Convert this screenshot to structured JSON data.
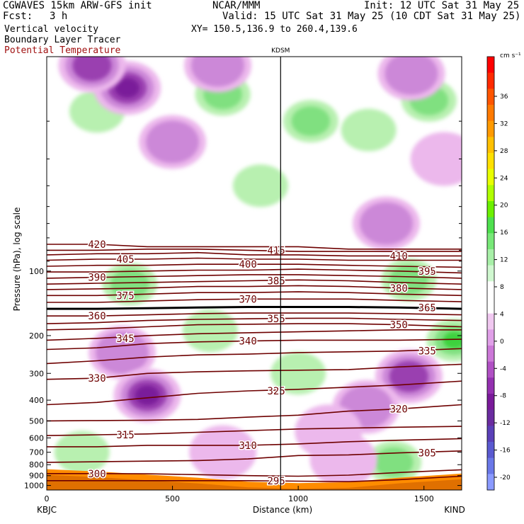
{
  "header": {
    "model": "CGWAVES 15km ARW-GFS init",
    "org": "NCAR/MMM",
    "init": "Init: 12 UTC Sat 31 May 25",
    "fcst_label": "Fcst:",
    "fcst_value": "3 h",
    "valid": "Valid: 15 UTC Sat 31 May 25 (10 CDT Sat 31 May 25)",
    "field1": "Vertical velocity",
    "field2": "Boundary Layer Tracer",
    "field3": "Potential Temperature",
    "xy": "XY= 150.5,136.9 to 260.4,139.6"
  },
  "colors": {
    "theta_contour": "#6e0000",
    "pbl_tracer": "#ff8c00",
    "pos_light": "#b8f0b0",
    "pos_mid": "#80e080",
    "pos_strong": "#3cd23c",
    "neg_light": "#ecb8ec",
    "neg_mid": "#cc88d8",
    "neg_strong": "#9a3fb0",
    "neg_vstrong": "#7a1a9a"
  },
  "chart_data": {
    "type": "heatmap",
    "xlabel": "Distance (km)",
    "ylabel": "Pressure (hPa), log scale",
    "y_log_scale": true,
    "xlim": [
      0,
      1650
    ],
    "ylim": [
      1050,
      10
    ],
    "x_ticks": [
      0,
      500,
      1000,
      1500
    ],
    "y_ticks": [
      100,
      200,
      300,
      400,
      500,
      600,
      700,
      800,
      900,
      1000
    ],
    "stations": [
      {
        "name": "KBJC",
        "x": 0
      },
      {
        "name": "KDSM",
        "x": 930
      },
      {
        "name": "KIND",
        "x": 1650
      }
    ],
    "colorbar": {
      "units": "cm s⁻¹",
      "ticks": [
        36,
        32,
        28,
        24,
        20,
        16,
        12,
        8,
        4,
        0,
        -4,
        -8,
        -12,
        -16,
        -20
      ],
      "colors": [
        "#ff0000",
        "#ff2a00",
        "#ff5500",
        "#ff7a00",
        "#ff9a00",
        "#ffc000",
        "#ffe000",
        "#e8ff00",
        "#b0ff00",
        "#6cf000",
        "#4ee04e",
        "#78e878",
        "#a8f0a8",
        "#d0f8d0",
        "#ffffff",
        "#ffffff",
        "#f0c8f0",
        "#e0a0e8",
        "#cc78d8",
        "#b050c4",
        "#9430b0",
        "#7a1a9a",
        "#6a2ca0",
        "#5a40b8",
        "#5a5ad0",
        "#6a78e8",
        "#8a9aff"
      ]
    },
    "theta_contours": [
      {
        "theta": 420,
        "p": [
          75,
          75,
          77,
          77,
          77,
          77,
          79,
          79,
          79
        ]
      },
      {
        "theta": 415,
        "p": [
          80,
          80,
          79,
          79,
          80,
          81,
          81,
          81,
          81
        ]
      },
      {
        "theta": 410,
        "p": [
          84,
          83,
          83,
          82,
          84,
          84,
          85,
          85,
          85
        ]
      },
      {
        "theta": 405,
        "p": [
          89,
          88,
          88,
          87,
          88,
          88,
          89,
          89,
          89
        ]
      },
      {
        "theta": 400,
        "p": [
          95,
          94,
          94,
          93,
          93,
          93,
          94,
          95,
          96
        ]
      },
      {
        "theta": 395,
        "p": [
          101,
          101,
          100,
          99,
          99,
          98,
          99,
          100,
          102
        ]
      },
      {
        "theta": 390,
        "p": [
          108,
          107,
          106,
          105,
          104,
          104,
          105,
          106,
          108
        ]
      },
      {
        "theta": 385,
        "p": [
          115,
          114,
          113,
          112,
          111,
          110,
          111,
          113,
          115
        ]
      },
      {
        "theta": 380,
        "p": [
          122,
          121,
          120,
          118,
          118,
          117,
          118,
          120,
          122
        ]
      },
      {
        "theta": 375,
        "p": [
          130,
          130,
          128,
          126,
          126,
          125,
          126,
          128,
          130
        ]
      },
      {
        "theta": 370,
        "p": [
          140,
          140,
          138,
          136,
          135,
          135,
          135,
          137,
          139
        ]
      },
      {
        "theta": 365,
        "p": [
          150,
          150,
          149,
          148,
          147,
          147,
          147,
          148,
          150
        ]
      },
      {
        "theta": 360,
        "p": [
          162,
          162,
          160,
          158,
          157,
          157,
          157,
          158,
          160
        ]
      },
      {
        "theta": 355,
        "p": [
          176,
          174,
          170,
          168,
          167,
          166,
          166,
          168,
          170
        ]
      },
      {
        "theta": 350,
        "p": [
          188,
          186,
          182,
          178,
          177,
          176,
          176,
          178,
          182
        ]
      },
      {
        "theta": 345,
        "p": [
          210,
          206,
          200,
          196,
          194,
          192,
          190,
          188,
          188
        ]
      },
      {
        "theta": 340,
        "p": [
          232,
          228,
          218,
          214,
          212,
          210,
          210,
          210,
          208
        ]
      },
      {
        "theta": 335,
        "p": [
          270,
          262,
          252,
          246,
          244,
          240,
          238,
          236,
          230
        ]
      },
      {
        "theta": 330,
        "p": [
          320,
          316,
          300,
          295,
          292,
          290,
          288,
          280,
          272
        ]
      },
      {
        "theta": 325,
        "p": [
          420,
          410,
          390,
          372,
          362,
          356,
          348,
          340,
          326
        ]
      },
      {
        "theta": 320,
        "p": [
          500,
          498,
          496,
          492,
          480,
          470,
          450,
          440,
          420
        ]
      },
      {
        "theta": 315,
        "p": [
          585,
          580,
          575,
          565,
          555,
          545,
          540,
          535,
          530
        ]
      },
      {
        "theta": 310,
        "p": [
          660,
          660,
          650,
          650,
          650,
          640,
          625,
          615,
          605
        ]
      },
      {
        "theta": 305,
        "p": [
          780,
          775,
          770,
          765,
          752,
          725,
          720,
          705,
          690
        ]
      },
      {
        "theta": 300,
        "p": [
          880,
          880,
          882,
          890,
          900,
          905,
          895,
          870,
          845
        ]
      },
      {
        "theta": 295,
        "p": [
          950,
          950,
          950,
          950,
          950,
          955,
          960,
          940,
          905
        ]
      }
    ],
    "contour_x": [
      0,
      200,
      400,
      600,
      800,
      1000,
      1200,
      1400,
      1650
    ],
    "tracer_top_p": [
      840,
      860,
      890,
      920,
      960,
      975,
      965,
      920,
      880
    ],
    "updrafts": [
      {
        "x": 200,
        "p": 18,
        "level": 1
      },
      {
        "x": 700,
        "p": 15,
        "level": 2
      },
      {
        "x": 1050,
        "p": 20,
        "level": 2
      },
      {
        "x": 1520,
        "p": 16,
        "level": 2
      },
      {
        "x": 1280,
        "p": 22,
        "level": 1
      },
      {
        "x": 850,
        "p": 40,
        "level": 1
      },
      {
        "x": 330,
        "p": 115,
        "level": 2
      },
      {
        "x": 1440,
        "p": 110,
        "level": 2
      },
      {
        "x": 1620,
        "p": 210,
        "level": 3
      },
      {
        "x": 650,
        "p": 190,
        "level": 1
      },
      {
        "x": 1000,
        "p": 300,
        "level": 1
      },
      {
        "x": 140,
        "p": 700,
        "level": 1
      },
      {
        "x": 1380,
        "p": 780,
        "level": 2
      }
    ],
    "downdrafts": [
      {
        "x": 320,
        "p": 14,
        "level": 4
      },
      {
        "x": 180,
        "p": 11,
        "level": 3
      },
      {
        "x": 680,
        "p": 11,
        "level": 2
      },
      {
        "x": 1450,
        "p": 12,
        "level": 2
      },
      {
        "x": 500,
        "p": 25,
        "level": 2
      },
      {
        "x": 1580,
        "p": 30,
        "level": 1
      },
      {
        "x": 1350,
        "p": 60,
        "level": 2
      },
      {
        "x": 300,
        "p": 240,
        "level": 2
      },
      {
        "x": 400,
        "p": 380,
        "level": 4
      },
      {
        "x": 1440,
        "p": 310,
        "level": 3
      },
      {
        "x": 1270,
        "p": 430,
        "level": 2
      },
      {
        "x": 1120,
        "p": 560,
        "level": 1
      },
      {
        "x": 1180,
        "p": 760,
        "level": 1
      },
      {
        "x": 700,
        "p": 700,
        "level": 1
      }
    ]
  }
}
